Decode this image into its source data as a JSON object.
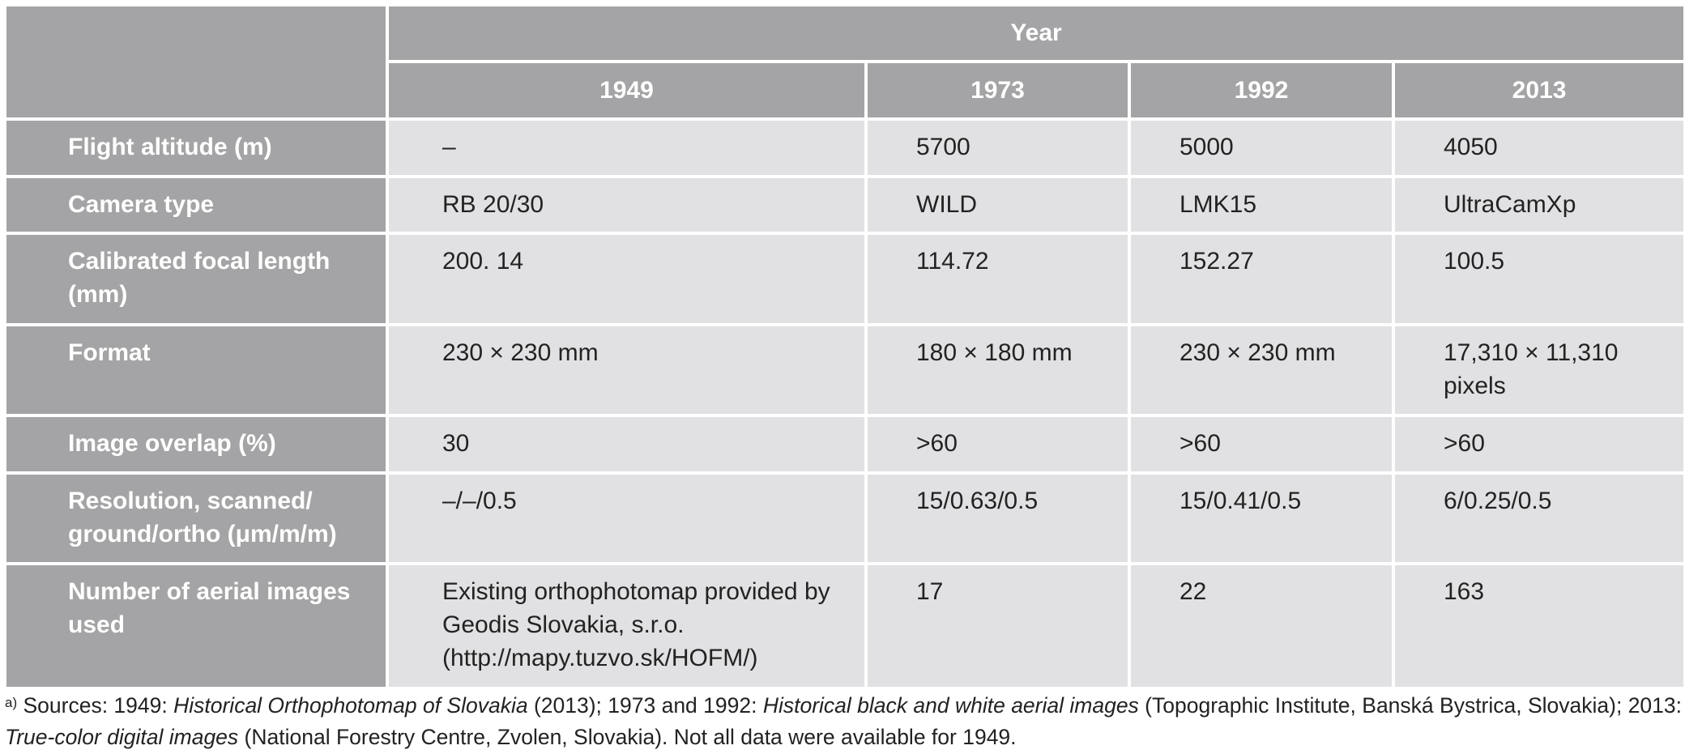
{
  "table": {
    "group_header": "Year",
    "years": [
      "1949",
      "1973",
      "1992",
      "2013"
    ],
    "rows": [
      {
        "label": "Flight altitude (m)",
        "values": [
          "–",
          "5700",
          "5000",
          "4050"
        ]
      },
      {
        "label": "Camera type",
        "values": [
          "RB 20/30",
          "WILD",
          "LMK15",
          "UltraCamXp"
        ]
      },
      {
        "label": "Calibrated focal length (mm)",
        "values": [
          "200. 14",
          "114.72",
          "152.27",
          "100.5"
        ]
      },
      {
        "label": "Format",
        "values": [
          "230 × 230 mm",
          "180 × 180 mm",
          "230 × 230 mm",
          "17,310 × 11,310 pixels"
        ]
      },
      {
        "label": "Image overlap (%)",
        "values": [
          "30",
          ">60",
          ">60",
          ">60"
        ]
      },
      {
        "label": "Resolution, scanned/ ground/ortho (μm/m/m)",
        "values": [
          "–/–/0.5",
          "15/0.63/0.5",
          "15/0.41/0.5",
          "6/0.25/0.5"
        ]
      },
      {
        "label": "Number of aerial images used",
        "values": [
          "Existing orthophotomap provided by Geodis Slovakia, s.r.o. (http://mapy.tuzvo.sk/HOFM/)",
          "17",
          "22",
          "163"
        ]
      }
    ]
  },
  "footnote": {
    "marker": "a)",
    "p1": " Sources: 1949: ",
    "i1": "Historical Orthophotomap of Slovakia",
    "p2": " (2013); 1973 and 1992: ",
    "i2": "Historical black and white aerial images",
    "p3": " (Topographic Institute, Banská Bystrica, Slovakia); 2013: ",
    "i3": "True-color digital images",
    "p4": " (National Forestry Centre, Zvolen, Slovakia). Not all data were available for 1949."
  }
}
